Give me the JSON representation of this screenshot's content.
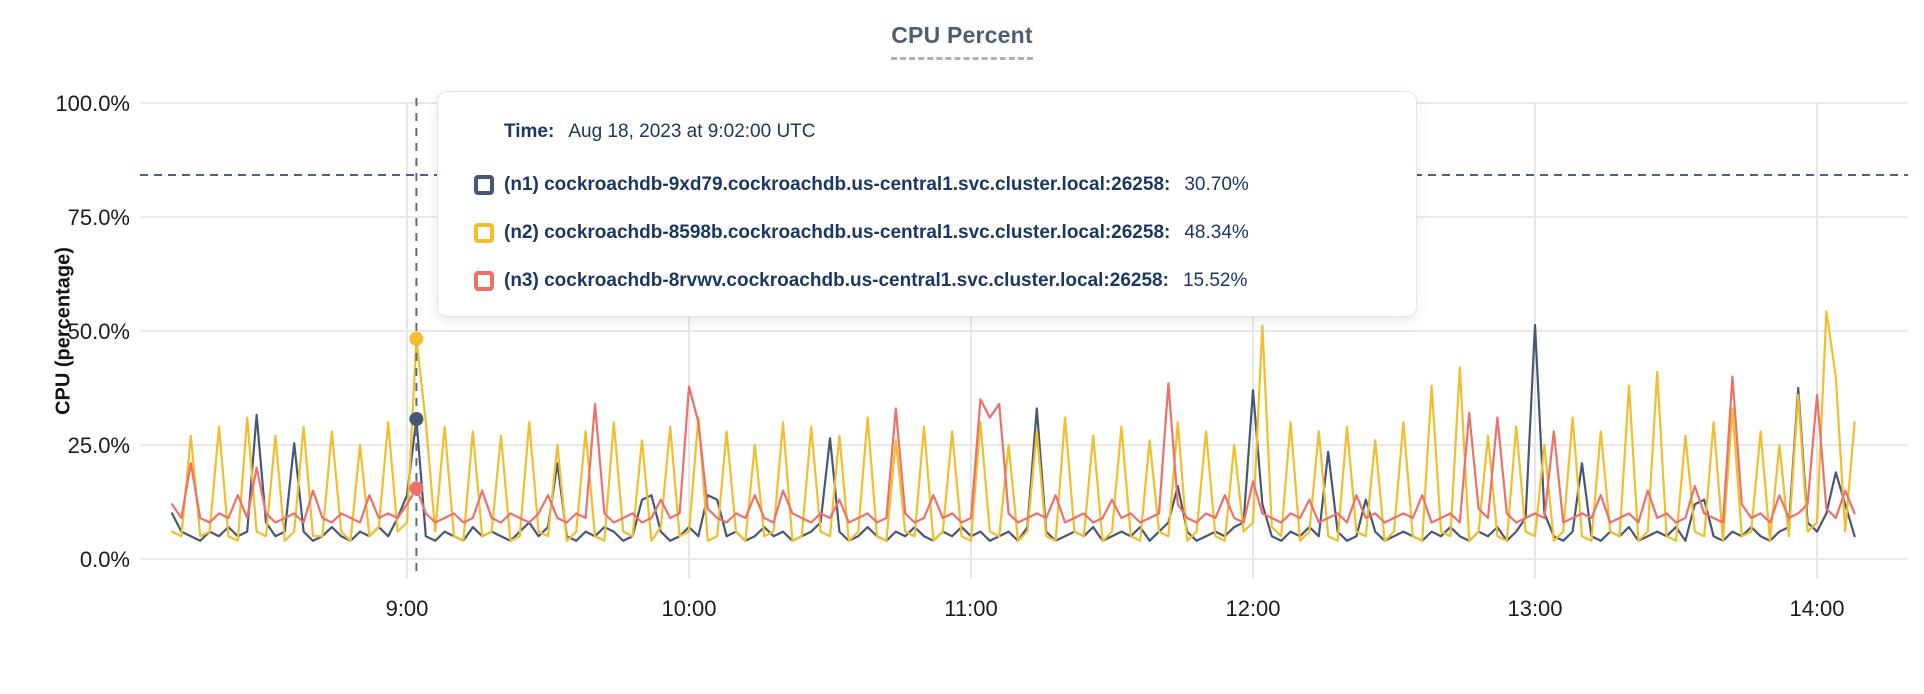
{
  "title": "CPU Percent",
  "tooltip": {
    "time_label": "Time:",
    "time_value": "Aug 18, 2023 at 9:02:00 UTC",
    "rows": [
      {
        "name": "(n1) cockroachdb-9xd79.cockroachdb.us-central1.svc.cluster.local:26258:",
        "value": "30.70%",
        "color": "#475872"
      },
      {
        "name": "(n2) cockroachdb-8598b.cockroachdb.us-central1.svc.cluster.local:26258:",
        "value": "48.34%",
        "color": "#f2be2d"
      },
      {
        "name": "(n3) cockroachdb-8rvwv.cockroachdb.us-central1.svc.cluster.local:26258:",
        "value": "15.52%",
        "color": "#ed706b"
      }
    ]
  },
  "chart_data": {
    "type": "line",
    "title": "CPU Percent",
    "xlabel": "",
    "ylabel": "CPU (percentage)",
    "ylim": [
      0,
      100
    ],
    "grid": true,
    "y_ticks": [
      "100.0%",
      "75.0%",
      "50.0%",
      "25.0%",
      "0.0%"
    ],
    "y_tick_values": [
      100,
      75,
      50,
      25,
      0
    ],
    "x_ticks": [
      "9:00",
      "10:00",
      "11:00",
      "12:00",
      "13:00",
      "14:00"
    ],
    "x_tick_minutes": [
      540,
      600,
      660,
      720,
      780,
      840
    ],
    "x_start_min": 490,
    "x_step_min": 2,
    "hover": {
      "time_min": 542,
      "dashed_hline_percent": 84.2,
      "values": {
        "n1": 30.7,
        "n2": 48.34,
        "n3": 15.52
      }
    },
    "series": [
      {
        "name": "(n1) cockroachdb-9xd79.cockroachdb.us-central1.svc.cluster.local:26258",
        "color": "#475872",
        "values": [
          10,
          6,
          5,
          4,
          6,
          5,
          7,
          5,
          6,
          31.6,
          8,
          5,
          6,
          25.4,
          6,
          4,
          5,
          7,
          5,
          4,
          6,
          5,
          7,
          5,
          9,
          14,
          30.7,
          5,
          4,
          6,
          5,
          4,
          7,
          5,
          6,
          5,
          4,
          6,
          8,
          5,
          7,
          21,
          5,
          4,
          6,
          5,
          7,
          6,
          4,
          5,
          13,
          14,
          6,
          4,
          5,
          7,
          5,
          14,
          13,
          5,
          6,
          4,
          5,
          7,
          5,
          6,
          4,
          5,
          6,
          8,
          26.5,
          6,
          4,
          5,
          7,
          5,
          4,
          6,
          5,
          7,
          5,
          4,
          6,
          5,
          7,
          5,
          6,
          4,
          5,
          6,
          4,
          7,
          33,
          6,
          4,
          5,
          6,
          5,
          7,
          4,
          5,
          6,
          5,
          7,
          4,
          6,
          8,
          16,
          6,
          4,
          5,
          6,
          5,
          7,
          8,
          37,
          12,
          5,
          4,
          6,
          5,
          7,
          5,
          23.5,
          6,
          4,
          5,
          13,
          6,
          4,
          5,
          6,
          5,
          4,
          6,
          5,
          7,
          5,
          4,
          6,
          5,
          7,
          4,
          6,
          9,
          51.3,
          10,
          5,
          4,
          6,
          21,
          5,
          4,
          6,
          5,
          7,
          4,
          5,
          6,
          5,
          7,
          4,
          12,
          13,
          5,
          4,
          6,
          5,
          7,
          5,
          4,
          6,
          7,
          37.5,
          8,
          6,
          10,
          19,
          12,
          5
        ]
      },
      {
        "name": "(n2) cockroachdb-8598b.cockroachdb.us-central1.svc.cluster.local:26258",
        "color": "#f2be2d",
        "values": [
          6,
          5,
          27,
          5,
          6,
          29,
          5,
          4,
          31,
          6,
          5,
          27,
          4,
          6,
          29,
          5,
          5,
          28,
          6,
          4,
          25,
          5,
          7,
          30,
          6,
          8,
          48.3,
          30,
          6,
          29,
          5,
          4,
          28,
          5,
          6,
          27,
          4,
          5,
          30,
          6,
          5,
          25,
          4,
          6,
          28,
          5,
          4,
          30,
          6,
          5,
          26,
          4,
          7,
          29,
          5,
          6,
          31,
          4,
          5,
          28,
          6,
          4,
          25,
          5,
          6,
          30,
          4,
          5,
          29,
          6,
          5,
          27,
          4,
          6,
          31,
          5,
          4,
          26,
          6,
          5,
          29,
          4,
          6,
          28,
          5,
          4,
          30,
          6,
          5,
          25,
          4,
          6,
          28,
          5,
          4,
          31,
          6,
          5,
          27,
          4,
          6,
          29,
          5,
          4,
          26,
          6,
          5,
          30,
          4,
          6,
          28,
          5,
          4,
          25,
          6,
          8,
          51.2,
          7,
          5,
          30,
          4,
          6,
          28,
          5,
          4,
          29,
          6,
          5,
          26,
          4,
          6,
          30,
          5,
          4,
          38,
          6,
          5,
          42,
          4,
          6,
          27,
          5,
          4,
          29,
          6,
          5,
          25,
          4,
          6,
          31,
          5,
          4,
          28,
          6,
          5,
          38,
          4,
          6,
          41,
          5,
          4,
          27,
          6,
          5,
          30,
          4,
          33,
          5,
          6,
          28,
          4,
          25,
          5,
          36,
          6,
          8,
          54.3,
          40,
          6,
          30
        ]
      },
      {
        "name": "(n3) cockroachdb-8rvwv.cockroachdb.us-central1.svc.cluster.local:26258",
        "color": "#ed706b",
        "values": [
          12,
          9,
          21,
          9,
          8,
          10,
          9,
          14,
          9,
          20,
          10,
          8,
          9,
          10,
          8,
          15,
          9,
          8,
          10,
          9,
          8,
          14,
          9,
          10,
          9,
          12,
          15.5,
          10,
          8,
          9,
          10,
          8,
          9,
          15,
          9,
          8,
          10,
          9,
          8,
          10,
          14,
          9,
          8,
          10,
          9,
          34,
          10,
          8,
          9,
          10,
          8,
          9,
          13,
          9,
          10,
          37.8,
          30,
          11,
          9,
          8,
          10,
          9,
          14,
          9,
          8,
          15,
          10,
          9,
          8,
          10,
          9,
          13,
          8,
          9,
          10,
          8,
          9,
          33,
          10,
          8,
          9,
          14,
          9,
          10,
          8,
          9,
          35,
          31,
          34,
          10,
          8,
          9,
          10,
          9,
          14,
          8,
          9,
          10,
          8,
          9,
          13,
          9,
          10,
          8,
          9,
          10,
          38.5,
          12,
          9,
          8,
          10,
          9,
          14,
          9,
          8,
          17,
          10,
          9,
          8,
          10,
          9,
          13,
          8,
          9,
          10,
          8,
          14,
          9,
          10,
          8,
          9,
          10,
          9,
          14,
          8,
          9,
          10,
          8,
          32,
          11,
          9,
          31,
          10,
          8,
          9,
          10,
          9,
          28,
          8,
          9,
          10,
          9,
          14,
          8,
          9,
          10,
          8,
          15,
          9,
          10,
          8,
          9,
          16,
          10,
          9,
          8,
          40,
          12,
          9,
          10,
          8,
          14,
          9,
          10,
          12,
          36,
          11,
          9,
          15,
          10
        ]
      }
    ]
  }
}
